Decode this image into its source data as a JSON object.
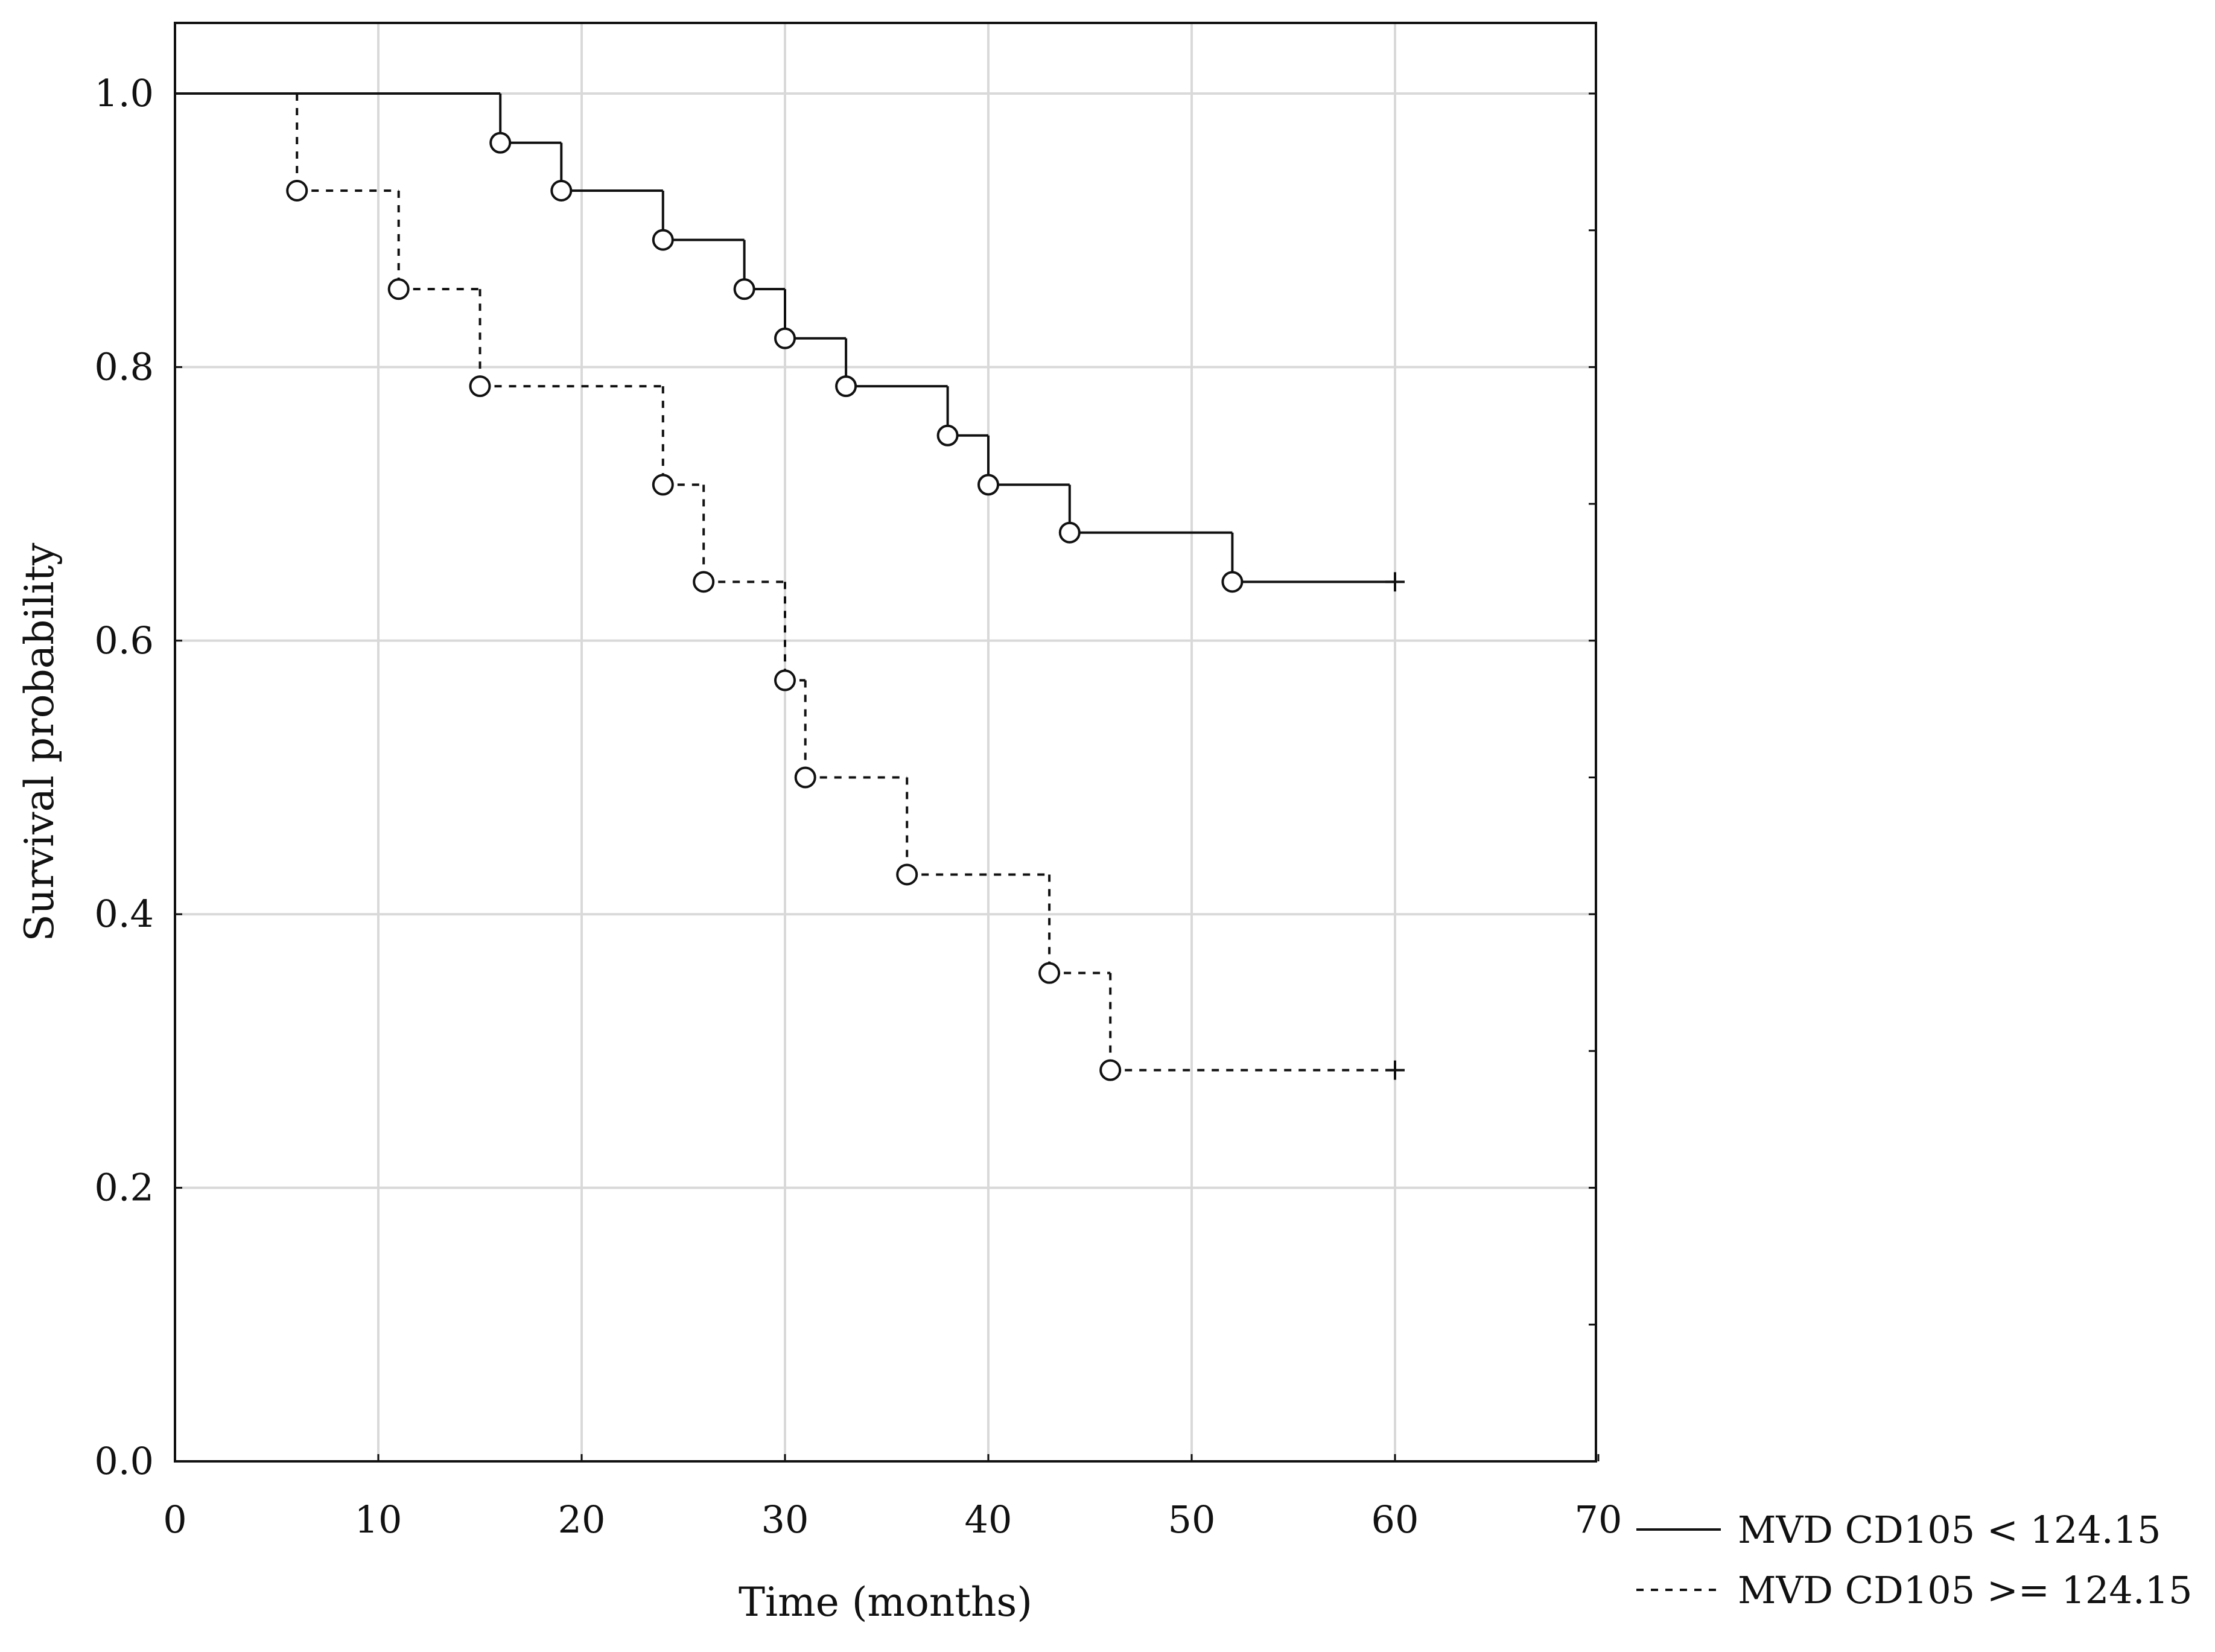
{
  "chart_data": {
    "type": "line",
    "subtype": "kaplan-meier",
    "title": "",
    "xlabel": "Time (months)",
    "ylabel": "Survival probability",
    "xlim": [
      0,
      70
    ],
    "ylim": [
      0,
      1.05
    ],
    "x_ticks": [
      0,
      10,
      20,
      30,
      40,
      50,
      60,
      70
    ],
    "x_tick_labels": [
      "0",
      "10",
      "20",
      "30",
      "40",
      "50",
      "60",
      "70"
    ],
    "y_ticks": [
      0,
      0.2,
      0.4,
      0.6,
      0.8,
      1.0
    ],
    "y_tick_labels": [
      "0.0",
      "0.2",
      "0.4",
      "0.6",
      "0.8",
      "1.0"
    ],
    "grid": true,
    "legend_position": "bottom-right-outside",
    "series": [
      {
        "name": "MVD CD105 < 124.15",
        "style": "solid",
        "start": 1.0,
        "events": [
          {
            "time": 16,
            "survival": 0.964
          },
          {
            "time": 19,
            "survival": 0.929
          },
          {
            "time": 24,
            "survival": 0.893
          },
          {
            "time": 28,
            "survival": 0.857
          },
          {
            "time": 30,
            "survival": 0.821
          },
          {
            "time": 33,
            "survival": 0.786
          },
          {
            "time": 38,
            "survival": 0.75
          },
          {
            "time": 40,
            "survival": 0.714
          },
          {
            "time": 44,
            "survival": 0.679
          },
          {
            "time": 52,
            "survival": 0.643
          }
        ],
        "censored": [
          {
            "time": 60,
            "survival": 0.643
          }
        ]
      },
      {
        "name": "MVD CD105 >= 124.15",
        "style": "dashed",
        "start": 1.0,
        "events": [
          {
            "time": 6,
            "survival": 0.929
          },
          {
            "time": 11,
            "survival": 0.857
          },
          {
            "time": 15,
            "survival": 0.786
          },
          {
            "time": 24,
            "survival": 0.714
          },
          {
            "time": 26,
            "survival": 0.643
          },
          {
            "time": 30,
            "survival": 0.571
          },
          {
            "time": 31,
            "survival": 0.5
          },
          {
            "time": 36,
            "survival": 0.429
          },
          {
            "time": 43,
            "survival": 0.357
          },
          {
            "time": 46,
            "survival": 0.286
          }
        ],
        "censored": [
          {
            "time": 60,
            "survival": 0.286
          }
        ]
      }
    ]
  }
}
